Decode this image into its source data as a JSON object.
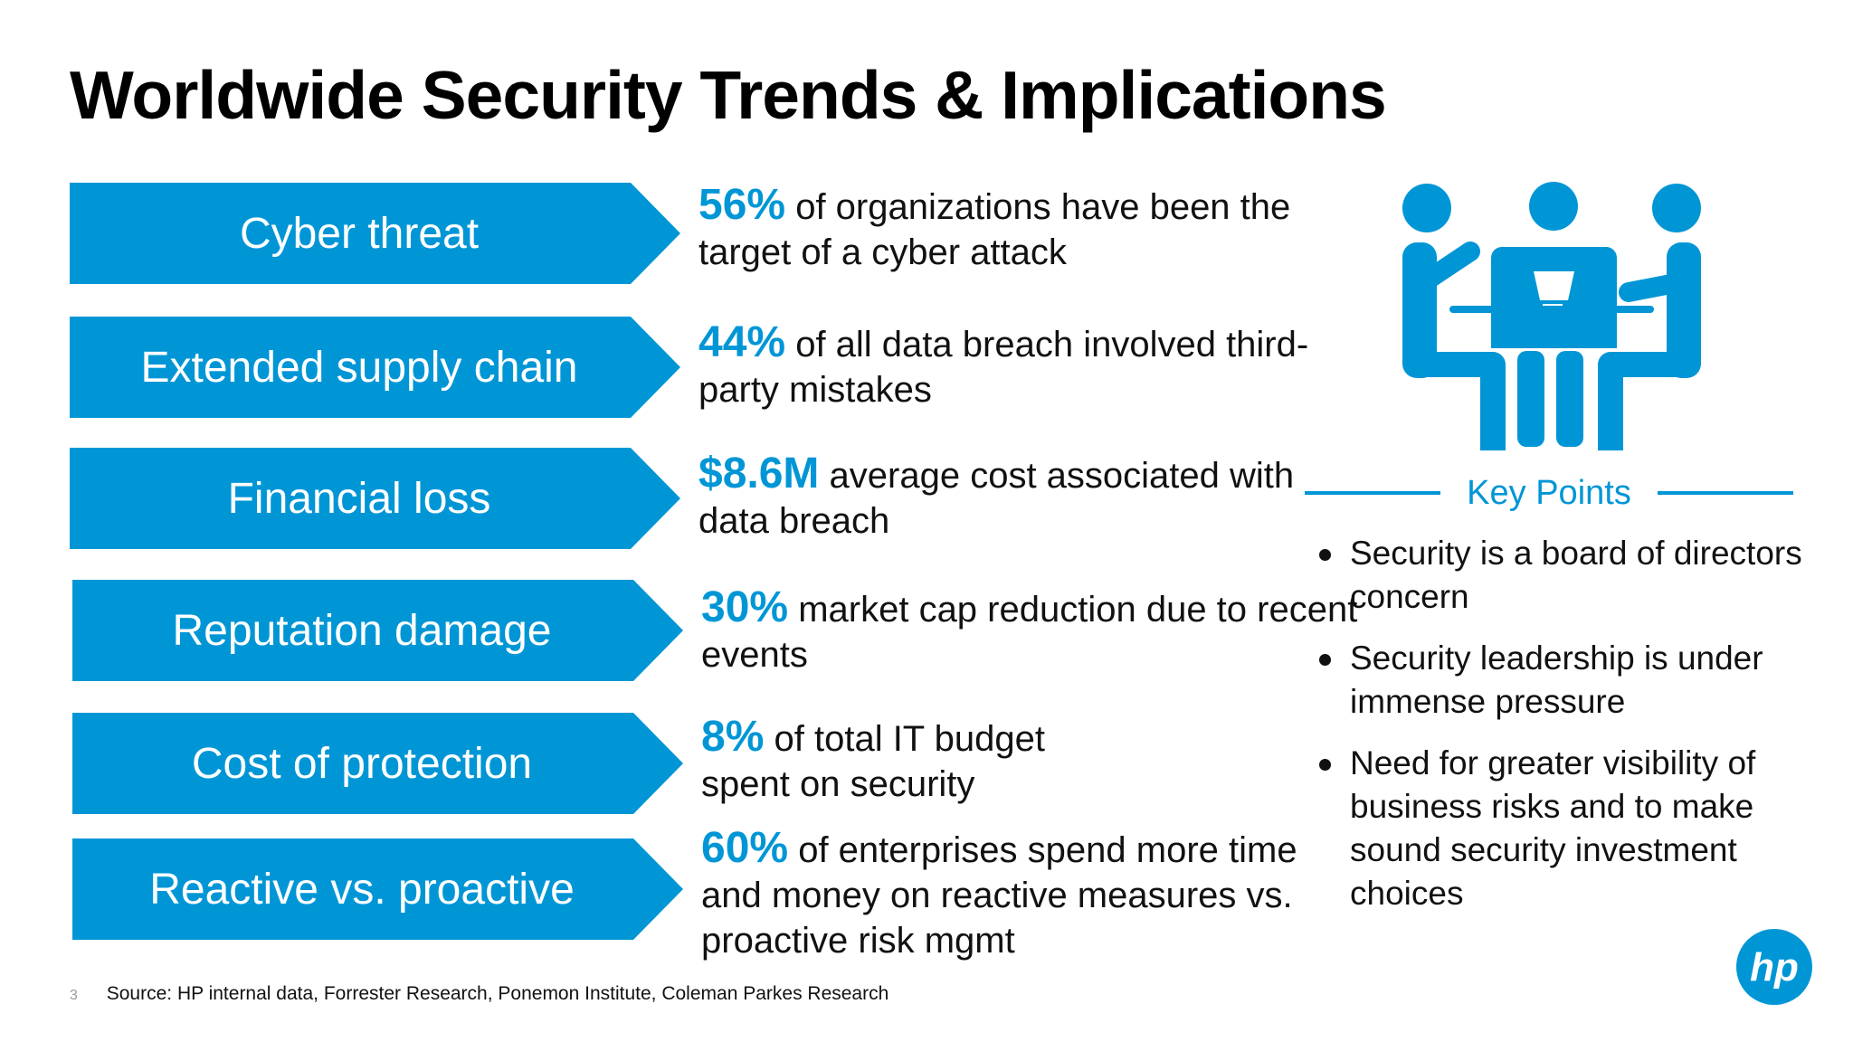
{
  "title": "Worldwide Security Trends & Implications",
  "colors": {
    "accent": "#0096d6",
    "text": "#111111"
  },
  "rows": [
    {
      "label": "Cyber threat",
      "stat": "56%",
      "text": "of organizations have been the target of a cyber attack"
    },
    {
      "label": "Extended supply chain",
      "stat": "44%",
      "text": "of all data breach involved third-party mistakes"
    },
    {
      "label": "Financial loss",
      "stat": "$8.6M",
      "text": "average cost associated with data breach"
    },
    {
      "label": "Reputation damage",
      "stat": "30%",
      "text": "market cap reduction due to recent events"
    },
    {
      "label": "Cost of protection",
      "stat": "8%",
      "text": "of total IT budget spent on security"
    },
    {
      "label": "Reactive vs. proactive",
      "stat": "60%",
      "text": "of enterprises spend more time and money on reactive measures vs. proactive risk mgmt"
    }
  ],
  "key_points": {
    "title": "Key Points",
    "items": [
      "Security is a board of directors concern",
      "Security leadership is under immense pressure",
      "Need for greater visibility of business risks and to make sound security investment choices"
    ]
  },
  "footer": {
    "page_number": "3",
    "source": "Source: HP internal data, Forrester Research, Ponemon Institute, Coleman Parkes Research"
  },
  "icons": {
    "meeting": "meeting-icon",
    "logo": "hp-logo-icon"
  },
  "logo_text": "hp"
}
